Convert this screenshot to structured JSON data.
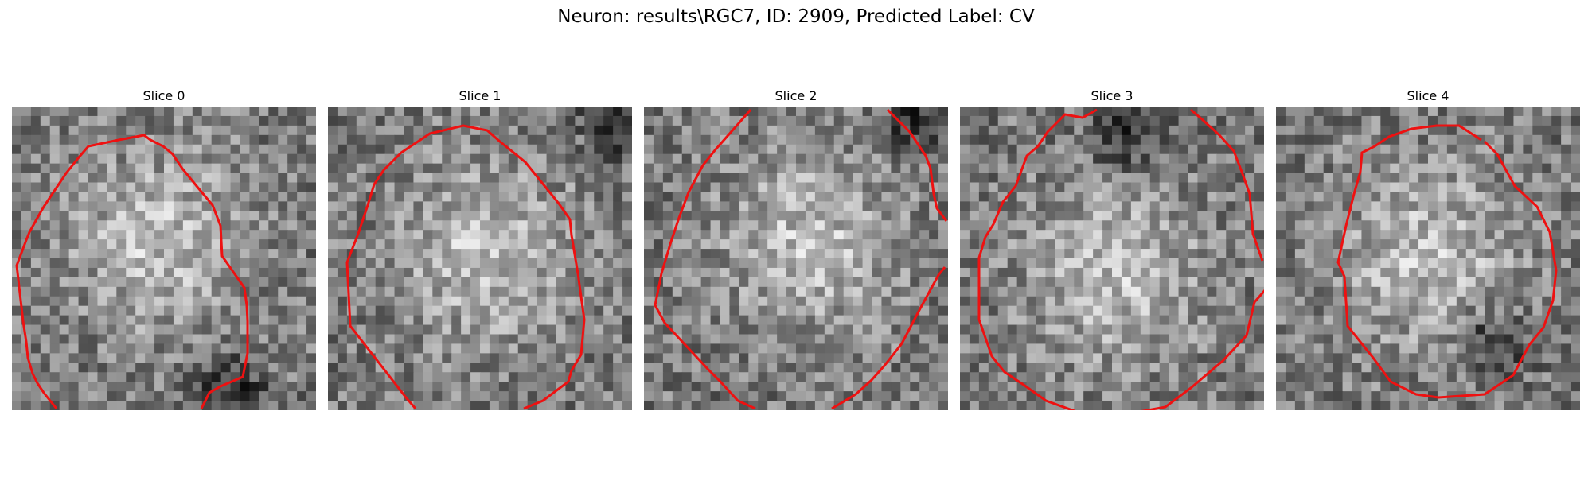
{
  "figure": {
    "title": "Neuron: results\\RGC7, ID: 2909, Predicted Label: CV"
  },
  "panels": [
    {
      "title": "Slice 0",
      "seed": 11,
      "bright_center": [
        0.48,
        0.44
      ],
      "dark_spot": [
        0.72,
        0.92
      ]
    },
    {
      "title": "Slice 1",
      "seed": 23,
      "bright_center": [
        0.52,
        0.48
      ],
      "dark_spot": [
        0.95,
        0.05
      ]
    },
    {
      "title": "Slice 2",
      "seed": 37,
      "bright_center": [
        0.55,
        0.45
      ],
      "dark_spot": [
        0.9,
        0.05
      ]
    },
    {
      "title": "Slice 3",
      "seed": 51,
      "bright_center": [
        0.5,
        0.55
      ],
      "dark_spot": [
        0.55,
        0.1
      ]
    },
    {
      "title": "Slice 4",
      "seed": 67,
      "bright_center": [
        0.5,
        0.5
      ],
      "dark_spot": [
        0.72,
        0.78
      ]
    }
  ],
  "colors": {
    "contour": "#ee1111"
  }
}
